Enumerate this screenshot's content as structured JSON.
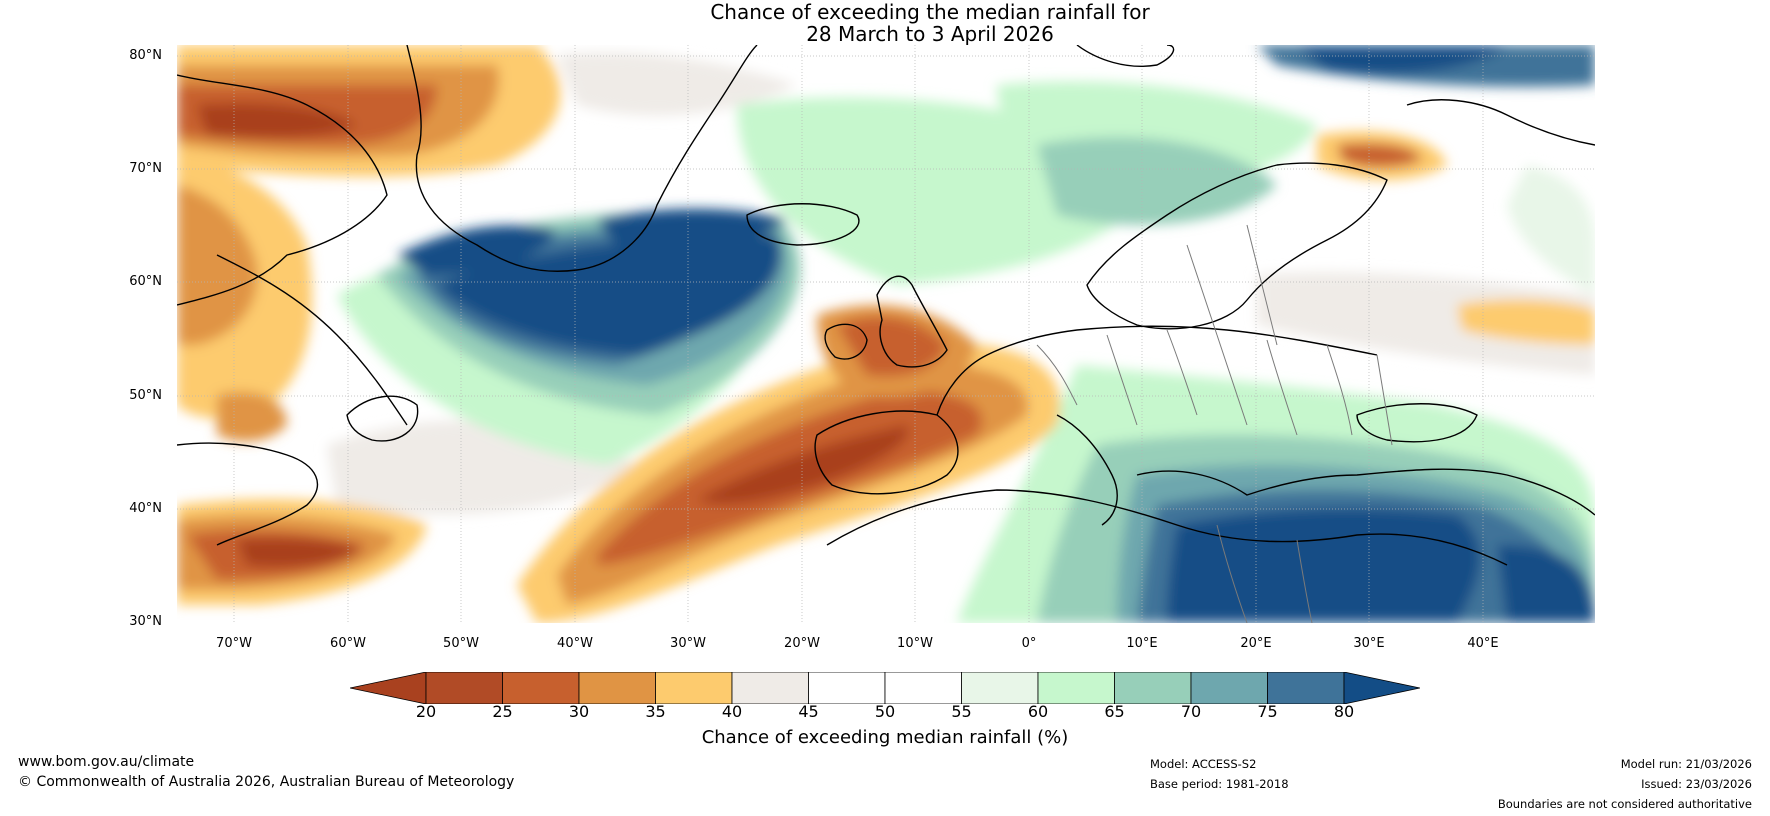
{
  "title": {
    "line1": "Chance of exceeding the median rainfall for",
    "line2": "28 March to 3 April 2026"
  },
  "map": {
    "lat_labels": [
      "80°N",
      "70°N",
      "60°N",
      "50°N",
      "40°N",
      "30°N"
    ],
    "lon_labels": [
      "70°W",
      "60°W",
      "50°W",
      "40°W",
      "30°W",
      "20°W",
      "10°W",
      "0°",
      "10°E",
      "20°E",
      "30°E",
      "40°E"
    ]
  },
  "colorbar": {
    "ticks": [
      "20",
      "25",
      "30",
      "35",
      "40",
      "45",
      "50",
      "55",
      "60",
      "65",
      "70",
      "75",
      "80"
    ],
    "colors": [
      "#a9411f",
      "#b14b26",
      "#c7602e",
      "#e09444",
      "#fdcb6e",
      "#efebe7",
      "#ffffff",
      "#ffffff",
      "#e8f6e8",
      "#c6f7cd",
      "#97cfb9",
      "#6ea7ae",
      "#3f7399",
      "#134d86"
    ],
    "label": "Chance of exceeding median rainfall (%)"
  },
  "footer": {
    "website": "www.bom.gov.au/climate",
    "copyright": "© Commonwealth of Australia 2026, Australian Bureau of Meteorology",
    "model": "Model: ACCESS-S2",
    "base_period": "Base period: 1981-2018",
    "model_run": "Model run: 21/03/2026",
    "issued": "Issued: 23/03/2026",
    "disclaimer": "Boundaries are not considered authoritative"
  }
}
